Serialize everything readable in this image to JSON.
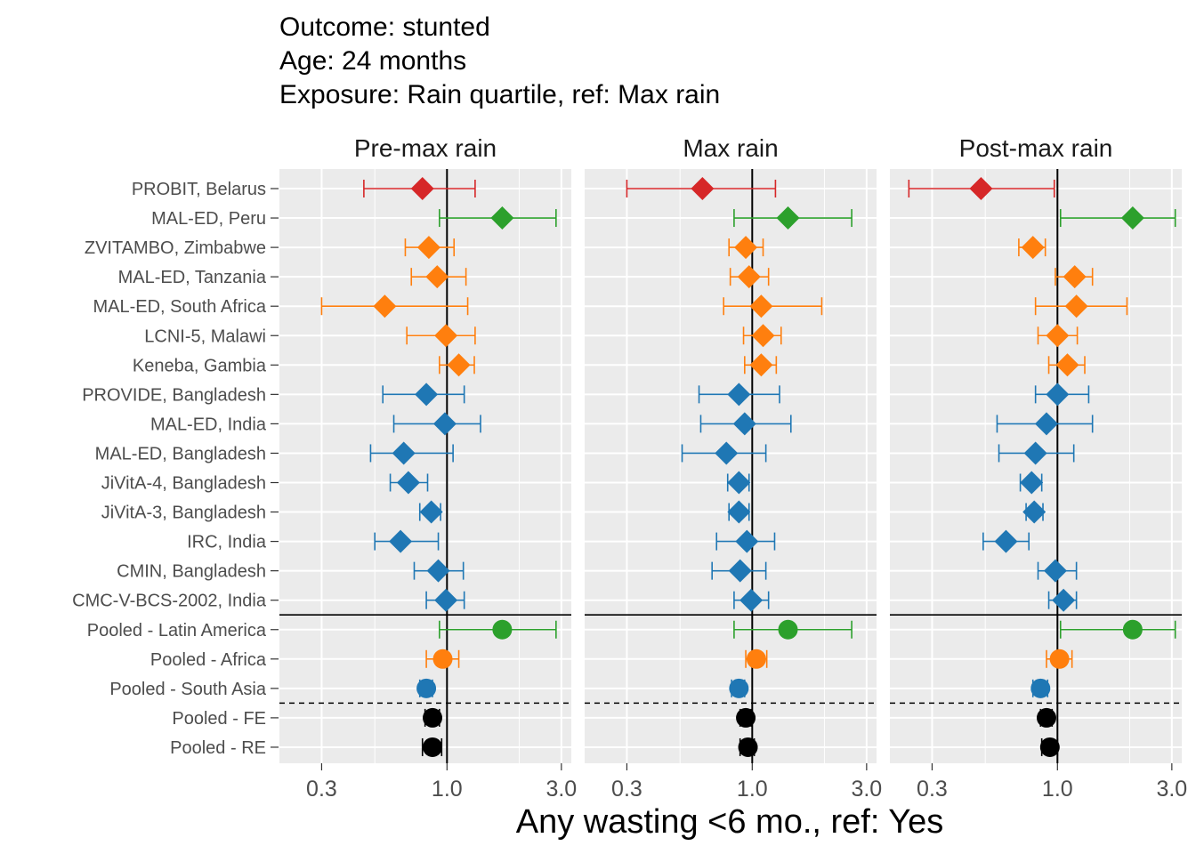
{
  "chart_data": {
    "type": "scatter",
    "title": [
      "Outcome: stunted",
      "Age: 24 months",
      "Exposure: Rain quartile, ref: Max rain"
    ],
    "xlabel": "Any wasting  <6 mo., ref: Yes",
    "ylabel": "",
    "x_scale": "log10",
    "xlim": [
      0.2,
      3.3
    ],
    "x_ticks": [
      0.3,
      1.0,
      3.0
    ],
    "x_tick_labels": [
      "0.3",
      "1.0",
      "3.0"
    ],
    "grid": true,
    "legend": "none",
    "reference_line_x": 1.0,
    "panels": [
      "Pre-max rain",
      "Max rain",
      "Post-max rain"
    ],
    "colors": {
      "Europe": "#d62728",
      "Latin America": "#2ca02c",
      "Africa": "#ff7f0e",
      "South Asia": "#1f77b4",
      "Overall": "#000000"
    },
    "rows": [
      {
        "label": "PROBIT, Belarus",
        "group": "Europe",
        "shape": "diamond"
      },
      {
        "label": "MAL-ED, Peru",
        "group": "Latin America",
        "shape": "diamond"
      },
      {
        "label": "ZVITAMBO, Zimbabwe",
        "group": "Africa",
        "shape": "diamond"
      },
      {
        "label": "MAL-ED, Tanzania",
        "group": "Africa",
        "shape": "diamond"
      },
      {
        "label": "MAL-ED, South Africa",
        "group": "Africa",
        "shape": "diamond"
      },
      {
        "label": "LCNI-5, Malawi",
        "group": "Africa",
        "shape": "diamond"
      },
      {
        "label": "Keneba, Gambia",
        "group": "Africa",
        "shape": "diamond"
      },
      {
        "label": "PROVIDE, Bangladesh",
        "group": "South Asia",
        "shape": "diamond"
      },
      {
        "label": "MAL-ED, India",
        "group": "South Asia",
        "shape": "diamond"
      },
      {
        "label": "MAL-ED, Bangladesh",
        "group": "South Asia",
        "shape": "diamond"
      },
      {
        "label": "JiVitA-4, Bangladesh",
        "group": "South Asia",
        "shape": "diamond"
      },
      {
        "label": "JiVitA-3, Bangladesh",
        "group": "South Asia",
        "shape": "diamond"
      },
      {
        "label": "IRC, India",
        "group": "South Asia",
        "shape": "diamond"
      },
      {
        "label": "CMIN, Bangladesh",
        "group": "South Asia",
        "shape": "diamond"
      },
      {
        "label": "CMC-V-BCS-2002, India",
        "group": "South Asia",
        "shape": "diamond"
      },
      {
        "label": "Pooled - Latin America",
        "group": "Latin America",
        "shape": "circle"
      },
      {
        "label": "Pooled - Africa",
        "group": "Africa",
        "shape": "circle"
      },
      {
        "label": "Pooled - South Asia",
        "group": "South Asia",
        "shape": "circle"
      },
      {
        "label": "Pooled - FE",
        "group": "Overall",
        "shape": "circle"
      },
      {
        "label": "Pooled - RE",
        "group": "Overall",
        "shape": "circle"
      }
    ],
    "series": [
      {
        "panel": "Pre-max rain",
        "est": [
          0.79,
          1.7,
          0.84,
          0.91,
          0.55,
          0.99,
          1.12,
          0.82,
          0.98,
          0.66,
          0.69,
          0.86,
          0.64,
          0.92,
          0.99,
          1.7,
          0.96,
          0.82,
          0.87,
          0.87
        ],
        "lower": [
          0.45,
          0.93,
          0.67,
          0.71,
          0.3,
          0.68,
          0.93,
          0.54,
          0.6,
          0.48,
          0.58,
          0.77,
          0.5,
          0.73,
          0.82,
          0.93,
          0.82,
          0.77,
          0.81,
          0.79
        ],
        "upper": [
          1.31,
          2.85,
          1.07,
          1.2,
          1.22,
          1.31,
          1.3,
          1.18,
          1.38,
          1.06,
          0.83,
          0.94,
          0.92,
          1.17,
          1.18,
          2.85,
          1.12,
          0.87,
          0.93,
          0.95
        ]
      },
      {
        "panel": "Max rain",
        "est": [
          0.62,
          1.41,
          0.94,
          0.97,
          1.09,
          1.11,
          1.09,
          0.88,
          0.93,
          0.78,
          0.88,
          0.88,
          0.95,
          0.89,
          0.99,
          1.41,
          1.04,
          0.88,
          0.94,
          0.96
        ],
        "lower": [
          0.3,
          0.84,
          0.8,
          0.81,
          0.76,
          0.92,
          0.93,
          0.6,
          0.61,
          0.51,
          0.79,
          0.8,
          0.71,
          0.68,
          0.84,
          0.84,
          0.94,
          0.82,
          0.89,
          0.89
        ],
        "upper": [
          1.25,
          2.6,
          1.11,
          1.17,
          1.95,
          1.32,
          1.26,
          1.3,
          1.45,
          1.14,
          0.97,
          0.97,
          1.24,
          1.14,
          1.17,
          2.6,
          1.15,
          0.93,
          0.99,
          1.02
        ]
      },
      {
        "panel": "Post-max rain",
        "est": [
          0.48,
          2.06,
          0.79,
          1.18,
          1.2,
          1.0,
          1.1,
          1.0,
          0.9,
          0.81,
          0.78,
          0.8,
          0.61,
          0.98,
          1.06,
          2.06,
          1.02,
          0.85,
          0.9,
          0.93
        ],
        "lower": [
          0.24,
          1.03,
          0.69,
          0.98,
          0.81,
          0.83,
          0.92,
          0.81,
          0.56,
          0.57,
          0.7,
          0.74,
          0.49,
          0.83,
          0.92,
          1.03,
          0.9,
          0.79,
          0.85,
          0.86
        ],
        "upper": [
          0.97,
          3.1,
          0.89,
          1.4,
          1.95,
          1.21,
          1.3,
          1.35,
          1.4,
          1.17,
          0.86,
          0.87,
          0.76,
          1.2,
          1.2,
          3.1,
          1.15,
          0.91,
          0.95,
          1.0
        ]
      }
    ]
  }
}
